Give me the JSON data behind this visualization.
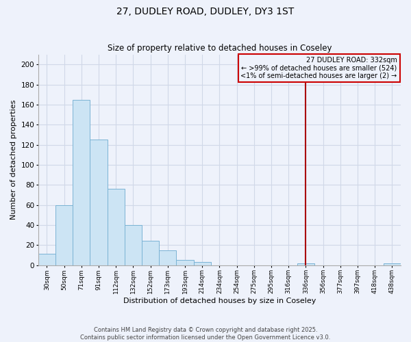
{
  "title": "27, DUDLEY ROAD, DUDLEY, DY3 1ST",
  "subtitle": "Size of property relative to detached houses in Coseley",
  "xlabel": "Distribution of detached houses by size in Coseley",
  "ylabel": "Number of detached properties",
  "bar_labels": [
    "30sqm",
    "50sqm",
    "71sqm",
    "91sqm",
    "112sqm",
    "132sqm",
    "152sqm",
    "173sqm",
    "193sqm",
    "214sqm",
    "234sqm",
    "254sqm",
    "275sqm",
    "295sqm",
    "316sqm",
    "336sqm",
    "356sqm",
    "377sqm",
    "397sqm",
    "418sqm",
    "438sqm"
  ],
  "bar_heights": [
    11,
    60,
    165,
    125,
    76,
    40,
    24,
    15,
    5,
    3,
    0,
    0,
    0,
    0,
    0,
    2,
    0,
    0,
    0,
    0,
    2
  ],
  "bar_color": "#cce4f4",
  "bar_edge_color": "#7ab3d4",
  "plot_bg_color": "#eef2fb",
  "fig_bg_color": "#eef2fb",
  "ylim": [
    0,
    210
  ],
  "yticks": [
    0,
    20,
    40,
    60,
    80,
    100,
    120,
    140,
    160,
    180,
    200
  ],
  "vline_x": 15,
  "vline_color": "#aa0000",
  "legend_title": "27 DUDLEY ROAD: 332sqm",
  "legend_line1": "← >99% of detached houses are smaller (524)",
  "legend_line2": "<1% of semi-detached houses are larger (2) →",
  "legend_box_color": "#cc0000",
  "footnote1": "Contains HM Land Registry data © Crown copyright and database right 2025.",
  "footnote2": "Contains public sector information licensed under the Open Government Licence v3.0.",
  "grid_color": "#d0d8e8"
}
